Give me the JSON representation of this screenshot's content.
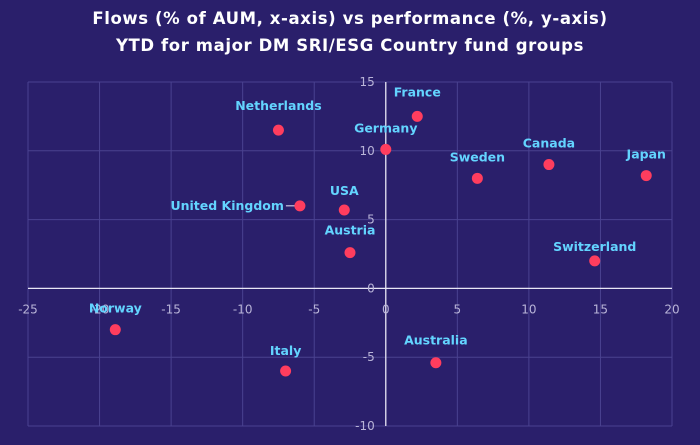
{
  "title": {
    "line1": "Flows (% of AUM, x-axis) vs performance (%, y-axis)",
    "line2": "YTD for major DM SRI/ESG Country fund groups"
  },
  "colors": {
    "background": "#2a1f6b",
    "point": "#ff3d5e",
    "label": "#63d4ff",
    "axis": "#e8e6f5",
    "grid": "#4a4290",
    "tick": "#b9b4d8"
  },
  "chart_data": {
    "type": "scatter",
    "title": "Flows (% of AUM, x-axis) vs performance (%, y-axis) YTD for major DM SRI/ESG Country fund groups",
    "xlabel": "",
    "ylabel": "",
    "xlim": [
      -25,
      20
    ],
    "ylim": [
      -10,
      15
    ],
    "xticks": [
      -25,
      -20,
      -15,
      -10,
      -5,
      0,
      5,
      10,
      15,
      20
    ],
    "yticks": [
      -10,
      -5,
      0,
      5,
      10,
      15
    ],
    "grid": true,
    "points": [
      {
        "label": "Netherlands",
        "x": -7.5,
        "y": 11.5
      },
      {
        "label": "France",
        "x": 2.2,
        "y": 12.5
      },
      {
        "label": "Germany",
        "x": 0.0,
        "y": 10.1
      },
      {
        "label": "Sweden",
        "x": 6.4,
        "y": 8.0
      },
      {
        "label": "Canada",
        "x": 11.4,
        "y": 9.0
      },
      {
        "label": "Japan",
        "x": 18.2,
        "y": 8.2
      },
      {
        "label": "United Kingdom",
        "x": -6.0,
        "y": 6.0
      },
      {
        "label": "USA",
        "x": -2.9,
        "y": 5.7
      },
      {
        "label": "Austria",
        "x": -2.5,
        "y": 2.6
      },
      {
        "label": "Switzerland",
        "x": 14.6,
        "y": 2.0
      },
      {
        "label": "Norway",
        "x": -18.9,
        "y": -3.0
      },
      {
        "label": "Italy",
        "x": -7.0,
        "y": -6.0
      },
      {
        "label": "Australia",
        "x": 3.5,
        "y": -5.4
      }
    ]
  }
}
